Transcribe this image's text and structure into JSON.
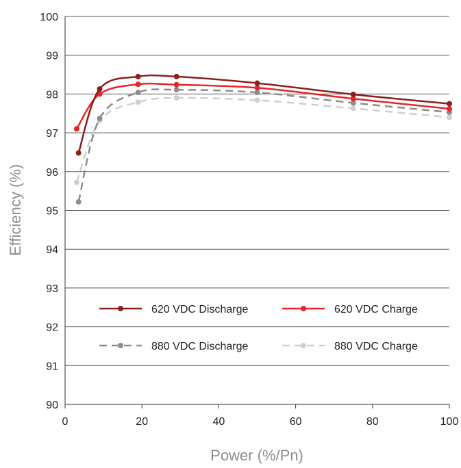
{
  "chart_data": {
    "type": "line",
    "title": "",
    "xlabel": "Power (%/Pn)",
    "ylabel": "Efficiency (%)",
    "xlim": [
      0,
      100
    ],
    "ylim": [
      90,
      100
    ],
    "xticks": [
      0,
      20,
      40,
      60,
      80,
      100
    ],
    "yticks": [
      90,
      91,
      92,
      93,
      94,
      95,
      96,
      97,
      98,
      99,
      100
    ],
    "xtick_labels": [
      "0",
      "20",
      "40",
      "60",
      "80",
      "100"
    ],
    "ytick_labels": [
      "90",
      "91",
      "92",
      "93",
      "94",
      "95",
      "96",
      "97",
      "98",
      "99",
      "100"
    ],
    "grid": "horizontal",
    "legend_position": "inside-bottom",
    "series": [
      {
        "name": "620 VDC Discharge",
        "color": "#8b1f1f",
        "dash": false,
        "x": [
          3.5,
          9,
          19,
          29,
          50,
          75,
          100
        ],
        "y": [
          96.48,
          98.13,
          98.45,
          98.45,
          98.28,
          97.99,
          97.75
        ]
      },
      {
        "name": "620 VDC Charge",
        "color": "#e8232a",
        "dash": false,
        "x": [
          3,
          9,
          19,
          29,
          50,
          75,
          100
        ],
        "y": [
          97.1,
          98.0,
          98.25,
          98.24,
          98.16,
          97.88,
          97.62
        ]
      },
      {
        "name": "880 VDC Discharge",
        "color": "#8c8c8c",
        "dash": true,
        "x": [
          3.5,
          9,
          19,
          29,
          50,
          75,
          100
        ],
        "y": [
          95.22,
          97.37,
          98.04,
          98.11,
          98.04,
          97.77,
          97.53
        ]
      },
      {
        "name": "880 VDC Charge",
        "color": "#cfcfcf",
        "dash": true,
        "x": [
          3,
          9,
          19,
          29,
          50,
          75,
          100
        ],
        "y": [
          95.72,
          97.31,
          97.79,
          97.9,
          97.84,
          97.63,
          97.4
        ]
      }
    ]
  }
}
